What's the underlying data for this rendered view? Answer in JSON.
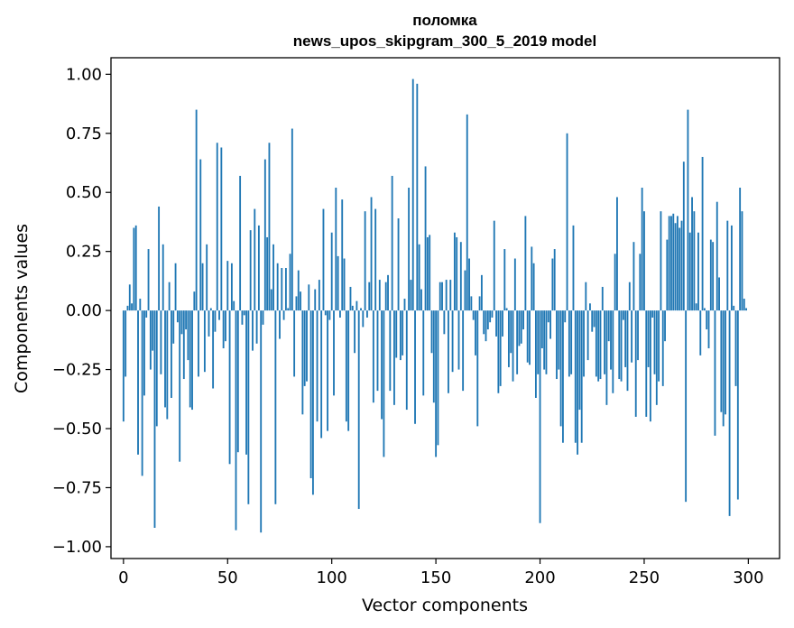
{
  "chart_data": {
    "type": "bar",
    "title_line1": "поломка",
    "title_line2": "news_upos_skipgram_300_5_2019 model",
    "xlabel": "Vector components",
    "ylabel": "Components values",
    "xlim": [
      -6,
      315
    ],
    "ylim": [
      -1.05,
      1.07
    ],
    "x_ticks": [
      0,
      50,
      100,
      150,
      200,
      250,
      300
    ],
    "x_tick_labels": [
      "0",
      "50",
      "100",
      "150",
      "200",
      "250",
      "300"
    ],
    "y_ticks": [
      -1.0,
      -0.75,
      -0.5,
      -0.25,
      0.0,
      0.25,
      0.5,
      0.75,
      1.0
    ],
    "y_tick_labels": [
      "−1.00",
      "−0.75",
      "−0.50",
      "−0.25",
      "0.00",
      "0.25",
      "0.50",
      "0.75",
      "1.00"
    ],
    "bar_color": "#1f77b4",
    "series": [
      {
        "name": "поломка",
        "values": [
          -0.47,
          -0.28,
          0.02,
          0.11,
          0.03,
          0.35,
          0.36,
          -0.61,
          0.05,
          -0.7,
          -0.36,
          -0.03,
          0.26,
          -0.25,
          -0.17,
          -0.92,
          -0.49,
          0.44,
          -0.27,
          0.28,
          -0.41,
          -0.46,
          0.12,
          -0.37,
          -0.14,
          0.2,
          -0.05,
          -0.64,
          -0.1,
          -0.29,
          -0.08,
          -0.21,
          -0.41,
          -0.42,
          0.08,
          0.85,
          -0.28,
          0.64,
          0.2,
          -0.26,
          0.28,
          -0.11,
          0.01,
          -0.33,
          -0.09,
          0.71,
          -0.04,
          0.69,
          -0.16,
          -0.13,
          0.21,
          -0.65,
          0.2,
          0.04,
          -0.93,
          -0.6,
          0.57,
          -0.06,
          -0.02,
          -0.61,
          -0.82,
          0.34,
          -0.17,
          0.43,
          -0.14,
          0.36,
          -0.94,
          -0.06,
          0.64,
          0.31,
          0.71,
          0.09,
          0.28,
          -0.82,
          0.2,
          -0.12,
          0.18,
          -0.04,
          0.18,
          0.01,
          0.24,
          0.77,
          -0.28,
          0.06,
          0.17,
          0.08,
          -0.44,
          -0.32,
          -0.3,
          0.11,
          -0.71,
          -0.78,
          0.09,
          -0.47,
          0.13,
          -0.54,
          0.43,
          -0.02,
          -0.51,
          -0.04,
          0.33,
          -0.36,
          0.52,
          0.23,
          -0.03,
          0.47,
          0.22,
          -0.47,
          -0.51,
          0.1,
          0.02,
          -0.18,
          0.04,
          -0.84,
          0.01,
          -0.07,
          0.42,
          -0.03,
          0.12,
          0.48,
          -0.39,
          0.43,
          -0.34,
          0.13,
          -0.46,
          -0.62,
          0.12,
          0.15,
          -0.34,
          0.57,
          -0.4,
          -0.2,
          0.39,
          -0.21,
          -0.19,
          0.05,
          -0.42,
          0.52,
          0.13,
          0.98,
          -0.48,
          0.96,
          0.28,
          0.09,
          -0.36,
          0.61,
          0.31,
          0.32,
          -0.18,
          -0.39,
          -0.62,
          -0.57,
          0.12,
          0.12,
          -0.1,
          0.13,
          -0.35,
          0.13,
          -0.26,
          0.33,
          0.31,
          -0.25,
          0.29,
          -0.34,
          0.17,
          0.83,
          0.22,
          0.06,
          -0.04,
          -0.19,
          -0.49,
          0.06,
          0.15,
          -0.1,
          -0.13,
          -0.08,
          -0.05,
          -0.03,
          0.38,
          -0.11,
          -0.35,
          -0.32,
          -0.11,
          0.26,
          0.01,
          -0.24,
          -0.18,
          -0.3,
          0.22,
          -0.27,
          -0.15,
          -0.14,
          -0.08,
          0.4,
          -0.22,
          -0.23,
          0.27,
          0.2,
          -0.37,
          -0.27,
          -0.9,
          -0.16,
          -0.25,
          -0.27,
          -0.05,
          -0.12,
          0.22,
          0.26,
          -0.29,
          -0.25,
          -0.49,
          -0.56,
          -0.05,
          0.75,
          -0.28,
          -0.27,
          0.36,
          -0.56,
          -0.61,
          -0.42,
          -0.56,
          -0.28,
          0.12,
          -0.21,
          0.03,
          -0.09,
          -0.07,
          -0.28,
          -0.3,
          -0.29,
          0.1,
          -0.27,
          -0.4,
          -0.13,
          -0.25,
          -0.35,
          0.24,
          0.48,
          -0.29,
          -0.3,
          -0.04,
          -0.24,
          -0.34,
          0.12,
          -0.22,
          0.29,
          -0.45,
          -0.21,
          0.24,
          0.52,
          0.42,
          -0.45,
          -0.24,
          -0.47,
          -0.03,
          -0.27,
          -0.4,
          -0.3,
          0.42,
          -0.32,
          -0.13,
          0.3,
          0.4,
          0.4,
          0.41,
          0.37,
          0.4,
          0.35,
          0.38,
          0.63,
          -0.81,
          0.85,
          0.33,
          0.48,
          0.42,
          0.03,
          0.33,
          -0.19,
          0.65,
          0.01,
          -0.08,
          -0.16,
          0.3,
          0.29,
          -0.53,
          0.46,
          0.14,
          -0.43,
          -0.49,
          -0.44,
          0.38,
          -0.87,
          0.36,
          0.02,
          -0.32,
          -0.8,
          0.52,
          0.42,
          0.05,
          0.01
        ]
      }
    ]
  }
}
